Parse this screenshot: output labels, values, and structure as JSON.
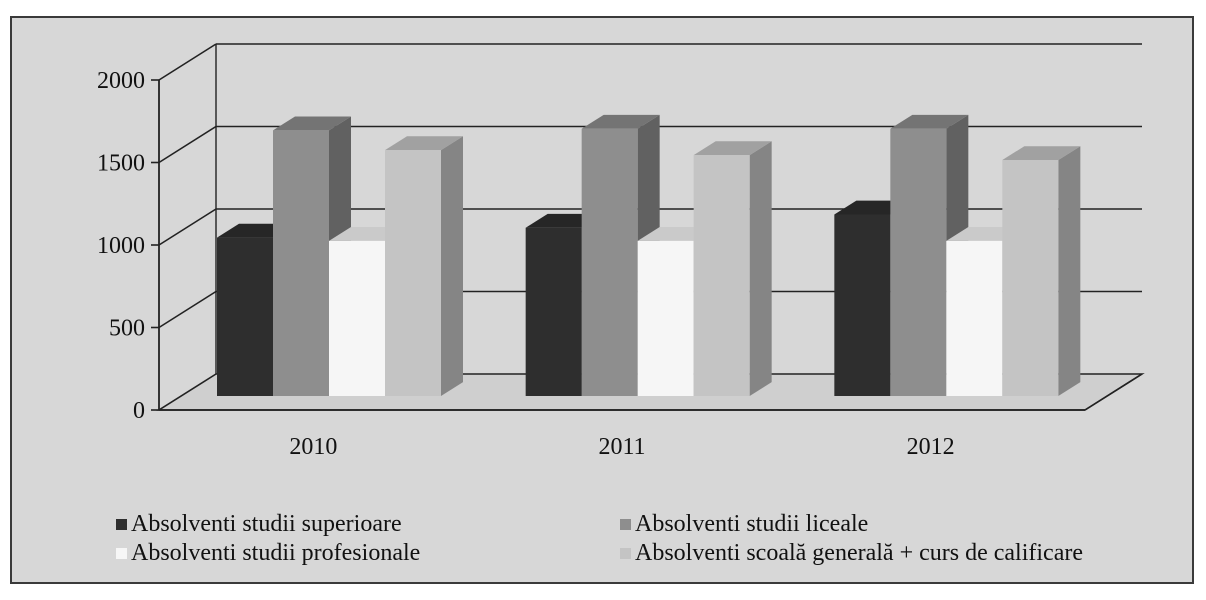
{
  "chart_data": {
    "type": "bar",
    "title": "",
    "xlabel": "",
    "ylabel": "",
    "categories": [
      "2010",
      "2011",
      "2012"
    ],
    "ylim": [
      0,
      2000
    ],
    "yticks": [
      "0",
      "500",
      "1000",
      "1500",
      "2000"
    ],
    "grid": true,
    "legend_position": "bottom",
    "series": [
      {
        "name": "Absolventi studii superioare",
        "values": [
          960,
          1020,
          1100
        ],
        "color": "#2e2e2e"
      },
      {
        "name": "Absolventi studii liceale",
        "values": [
          1610,
          1620,
          1620
        ],
        "color": "#8e8e8e"
      },
      {
        "name": "Absolventi studii profesionale",
        "values": [
          940,
          940,
          940
        ],
        "color": "#f6f6f6"
      },
      {
        "name": "Absolventi scoală generală + curs de calificare",
        "values": [
          1490,
          1460,
          1430
        ],
        "color": "#c4c4c4"
      }
    ]
  }
}
